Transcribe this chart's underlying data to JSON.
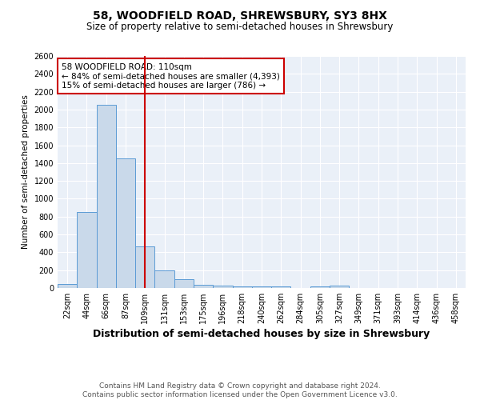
{
  "title": "58, WOODFIELD ROAD, SHREWSBURY, SY3 8HX",
  "subtitle": "Size of property relative to semi-detached houses in Shrewsbury",
  "xlabel": "Distribution of semi-detached houses by size in Shrewsbury",
  "ylabel": "Number of semi-detached properties",
  "footer_line1": "Contains HM Land Registry data © Crown copyright and database right 2024.",
  "footer_line2": "Contains public sector information licensed under the Open Government Licence v3.0.",
  "bin_labels": [
    "22sqm",
    "44sqm",
    "66sqm",
    "87sqm",
    "109sqm",
    "131sqm",
    "153sqm",
    "175sqm",
    "196sqm",
    "218sqm",
    "240sqm",
    "262sqm",
    "284sqm",
    "305sqm",
    "327sqm",
    "349sqm",
    "371sqm",
    "393sqm",
    "414sqm",
    "436sqm",
    "458sqm"
  ],
  "bin_values": [
    44,
    850,
    2050,
    1450,
    470,
    200,
    95,
    40,
    25,
    15,
    15,
    15,
    0,
    20,
    25,
    0,
    0,
    0,
    0,
    0,
    0
  ],
  "bar_color": "#c9d9ea",
  "bar_edge_color": "#5b9bd5",
  "property_line_x": 4,
  "property_line_color": "#cc0000",
  "annotation_text": "58 WOODFIELD ROAD: 110sqm\n← 84% of semi-detached houses are smaller (4,393)\n15% of semi-detached houses are larger (786) →",
  "annotation_box_color": "#cc0000",
  "ylim": [
    0,
    2600
  ],
  "yticks": [
    0,
    200,
    400,
    600,
    800,
    1000,
    1200,
    1400,
    1600,
    1800,
    2000,
    2200,
    2400,
    2600
  ],
  "background_color": "#eaf0f8",
  "grid_color": "#ffffff",
  "title_fontsize": 10,
  "subtitle_fontsize": 8.5,
  "xlabel_fontsize": 9,
  "ylabel_fontsize": 7.5,
  "tick_fontsize": 7,
  "annotation_fontsize": 7.5,
  "footer_fontsize": 6.5
}
